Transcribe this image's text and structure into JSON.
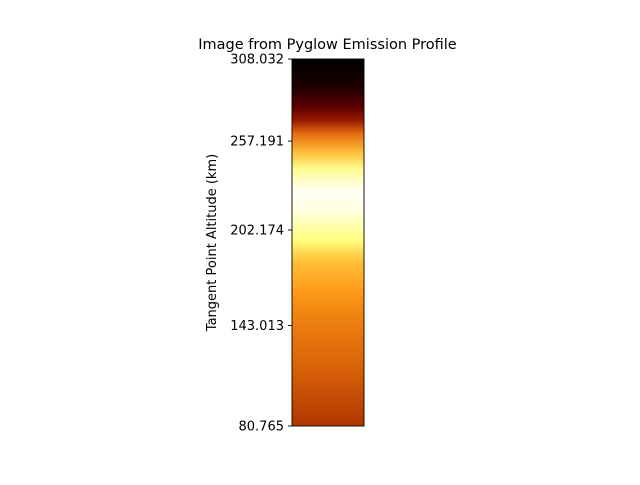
{
  "chart_data": {
    "type": "heatmap",
    "title": "Image from Pyglow Emission Profile",
    "xlabel": "",
    "ylabel": "Tangent Point Altitude (km)",
    "ylim": [
      80.765,
      308.032
    ],
    "yticks": [
      "80.765",
      "143.013",
      "202.174",
      "257.191",
      "308.032"
    ],
    "ytick_values": [
      80.765,
      143.013,
      202.174,
      257.191,
      308.032
    ],
    "colormap": "afmhot",
    "color_stops": [
      {
        "altitude": 308.032,
        "color": "#000000"
      },
      {
        "altitude": 292.0,
        "color": "#1a0000"
      },
      {
        "altitude": 278.0,
        "color": "#5c0000"
      },
      {
        "altitude": 270.0,
        "color": "#9a1a00"
      },
      {
        "altitude": 262.0,
        "color": "#e46a10"
      },
      {
        "altitude": 250.0,
        "color": "#ffc03a"
      },
      {
        "altitude": 240.0,
        "color": "#fffc90"
      },
      {
        "altitude": 226.0,
        "color": "#fffff6"
      },
      {
        "altitude": 214.0,
        "color": "#ffffe0"
      },
      {
        "altitude": 196.0,
        "color": "#ffff7e"
      },
      {
        "altitude": 184.0,
        "color": "#ffc43c"
      },
      {
        "altitude": 165.0,
        "color": "#ff9c1a"
      },
      {
        "altitude": 150.0,
        "color": "#f08410"
      },
      {
        "altitude": 115.0,
        "color": "#d86008"
      },
      {
        "altitude": 80.765,
        "color": "#b03600"
      }
    ],
    "grid": false
  }
}
